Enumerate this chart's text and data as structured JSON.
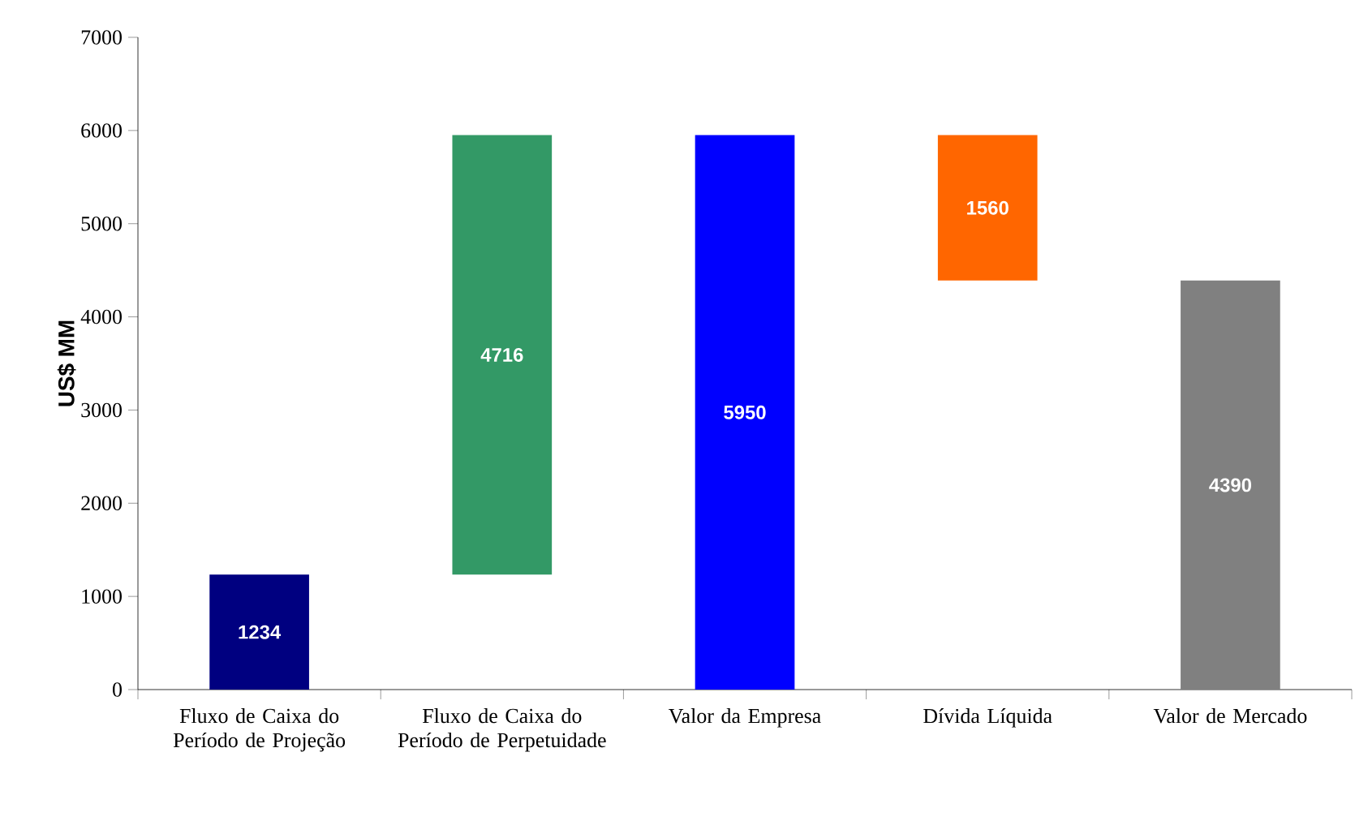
{
  "chart_data": {
    "type": "bar",
    "ylabel": "US$ MM",
    "categories": [
      "Fluxo de Caixa do Período de Projeção",
      "Fluxo de Caixa do Período de Perpetuidade",
      "Valor da Empresa",
      "Dívida Líquida",
      "Valor de Mercado"
    ],
    "values": [
      1234,
      4716,
      5950,
      1560,
      4390
    ],
    "base": [
      0,
      1234,
      0,
      4390,
      0
    ],
    "colors": [
      "#000080",
      "#339966",
      "#0000ff",
      "#ff6600",
      "#808080"
    ],
    "data_labels": true,
    "ylim": [
      0,
      7000
    ],
    "yticks": [
      0,
      1000,
      2000,
      3000,
      4000,
      5000,
      6000,
      7000
    ]
  }
}
